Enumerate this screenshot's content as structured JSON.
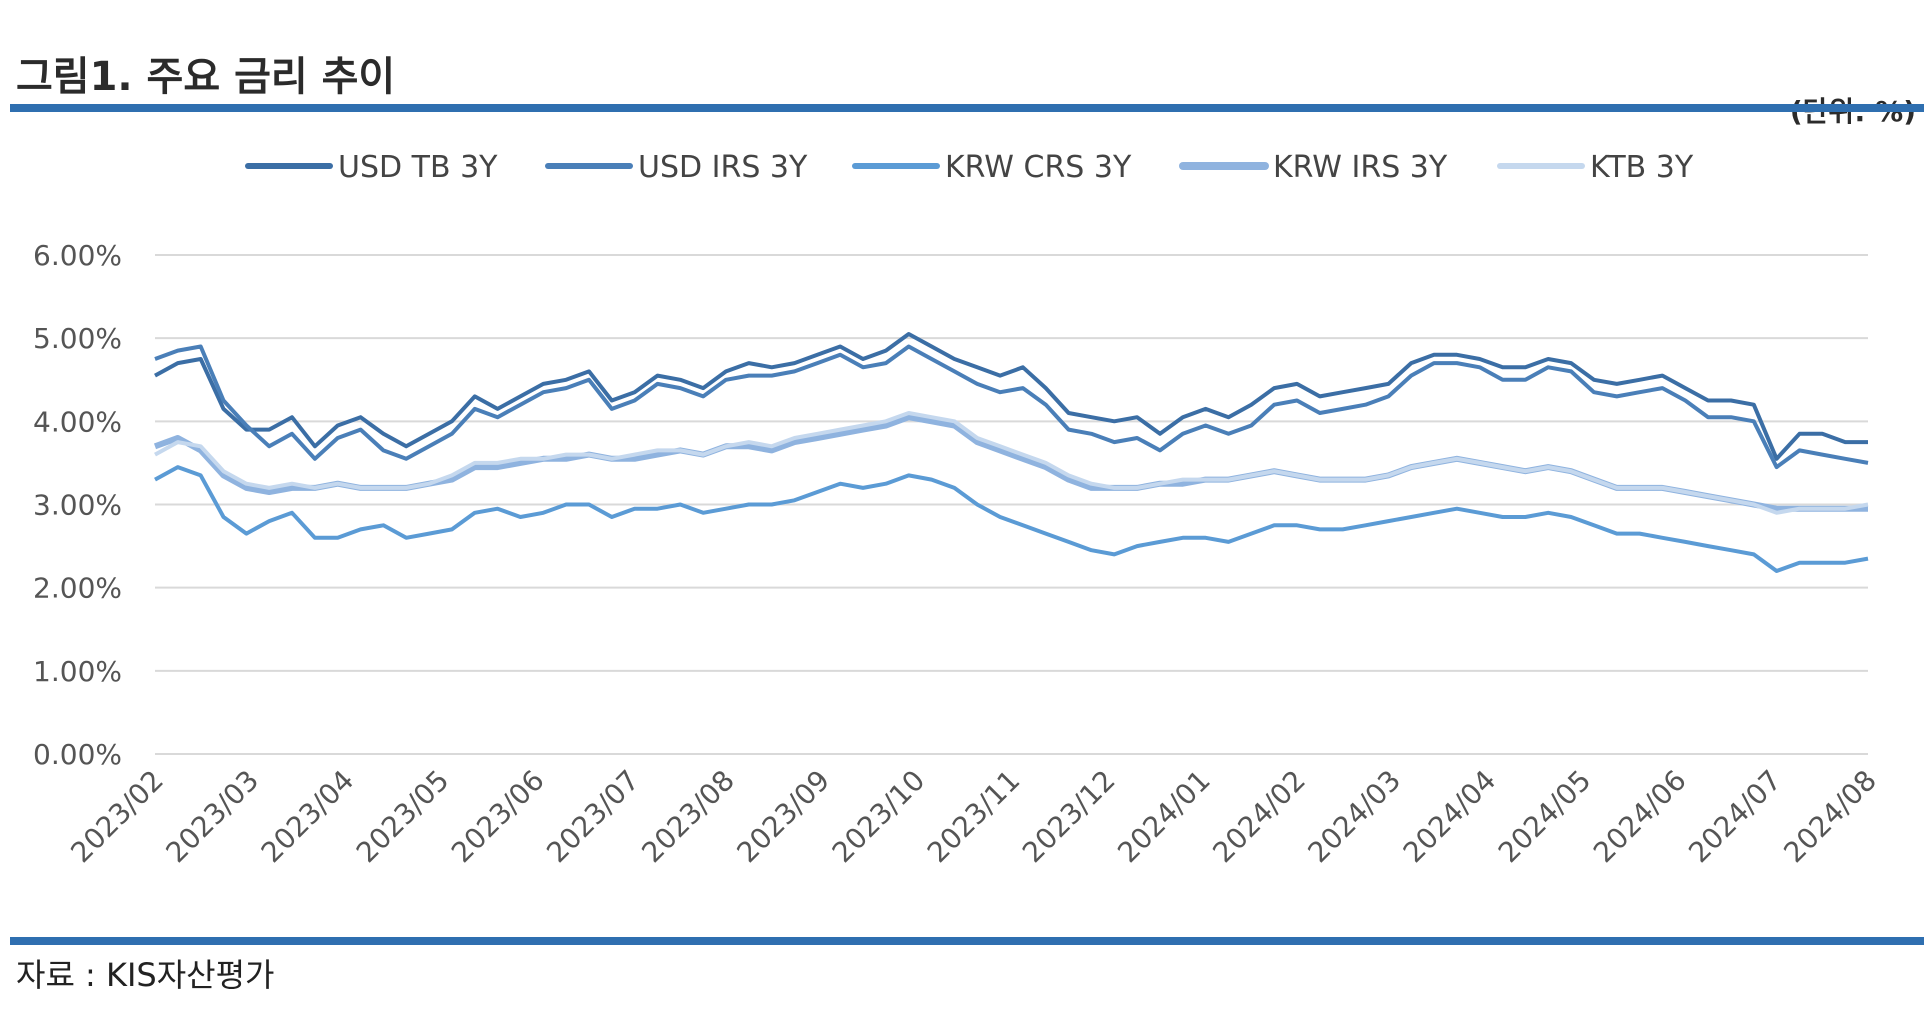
{
  "header": {
    "title": "그림1. 주요 금리 추이",
    "unit": "(단위: %)"
  },
  "footer": {
    "source": "자료 : KIS자산평가"
  },
  "chart_data": {
    "type": "line",
    "y_ticks": [
      "0.00%",
      "1.00%",
      "2.00%",
      "3.00%",
      "4.00%",
      "5.00%",
      "6.00%"
    ],
    "ylim": [
      0,
      6
    ],
    "grid": true,
    "legend_position": "top",
    "x_labels": [
      "2023/02",
      "2023/03",
      "2023/04",
      "2023/05",
      "2023/06",
      "2023/07",
      "2023/08",
      "2023/09",
      "2023/10",
      "2023/11",
      "2023/12",
      "2024/01",
      "2024/02",
      "2024/03",
      "2024/04",
      "2024/05",
      "2024/06",
      "2024/07",
      "2024/08"
    ],
    "series": [
      {
        "name": "USD TB 3Y",
        "color": "#3b6ea5",
        "width": 4,
        "values": [
          4.55,
          4.7,
          4.75,
          4.15,
          3.9,
          3.9,
          4.05,
          3.7,
          3.95,
          4.05,
          3.85,
          3.7,
          3.85,
          4.0,
          4.3,
          4.15,
          4.3,
          4.45,
          4.5,
          4.6,
          4.25,
          4.35,
          4.55,
          4.5,
          4.4,
          4.6,
          4.7,
          4.65,
          4.7,
          4.8,
          4.9,
          4.75,
          4.85,
          5.05,
          4.9,
          4.75,
          4.65,
          4.55,
          4.65,
          4.4,
          4.1,
          4.05,
          4.0,
          4.05,
          3.85,
          4.05,
          4.15,
          4.05,
          4.2,
          4.4,
          4.45,
          4.3,
          4.35,
          4.4,
          4.45,
          4.7,
          4.8,
          4.8,
          4.75,
          4.65,
          4.65,
          4.75,
          4.7,
          4.5,
          4.45,
          4.5,
          4.55,
          4.4,
          4.25,
          4.25,
          4.2,
          3.55,
          3.85,
          3.85,
          3.75,
          3.75
        ]
      },
      {
        "name": "USD IRS 3Y",
        "color": "#4a7fb8",
        "width": 4,
        "values": [
          4.75,
          4.85,
          4.9,
          4.25,
          3.95,
          3.7,
          3.85,
          3.55,
          3.8,
          3.9,
          3.65,
          3.55,
          3.7,
          3.85,
          4.15,
          4.05,
          4.2,
          4.35,
          4.4,
          4.5,
          4.15,
          4.25,
          4.45,
          4.4,
          4.3,
          4.5,
          4.55,
          4.55,
          4.6,
          4.7,
          4.8,
          4.65,
          4.7,
          4.9,
          4.75,
          4.6,
          4.45,
          4.35,
          4.4,
          4.2,
          3.9,
          3.85,
          3.75,
          3.8,
          3.65,
          3.85,
          3.95,
          3.85,
          3.95,
          4.2,
          4.25,
          4.1,
          4.15,
          4.2,
          4.3,
          4.55,
          4.7,
          4.7,
          4.65,
          4.5,
          4.5,
          4.65,
          4.6,
          4.35,
          4.3,
          4.35,
          4.4,
          4.25,
          4.05,
          4.05,
          4.0,
          3.45,
          3.65,
          3.6,
          3.55,
          3.5
        ]
      },
      {
        "name": "KRW CRS 3Y",
        "color": "#5b9bd5",
        "width": 4,
        "values": [
          3.3,
          3.45,
          3.35,
          2.85,
          2.65,
          2.8,
          2.9,
          2.6,
          2.6,
          2.7,
          2.75,
          2.6,
          2.65,
          2.7,
          2.9,
          2.95,
          2.85,
          2.9,
          3.0,
          3.0,
          2.85,
          2.95,
          2.95,
          3.0,
          2.9,
          2.95,
          3.0,
          3.0,
          3.05,
          3.15,
          3.25,
          3.2,
          3.25,
          3.35,
          3.3,
          3.2,
          3.0,
          2.85,
          2.75,
          2.65,
          2.55,
          2.45,
          2.4,
          2.5,
          2.55,
          2.6,
          2.6,
          2.55,
          2.65,
          2.75,
          2.75,
          2.7,
          2.7,
          2.75,
          2.8,
          2.85,
          2.9,
          2.95,
          2.9,
          2.85,
          2.85,
          2.9,
          2.85,
          2.75,
          2.65,
          2.65,
          2.6,
          2.55,
          2.5,
          2.45,
          2.4,
          2.2,
          2.3,
          2.3,
          2.3,
          2.35
        ]
      },
      {
        "name": "KRW IRS 3Y",
        "color": "#8fb3df",
        "width": 6,
        "values": [
          3.7,
          3.8,
          3.65,
          3.35,
          3.2,
          3.15,
          3.2,
          3.2,
          3.25,
          3.2,
          3.2,
          3.2,
          3.25,
          3.3,
          3.45,
          3.45,
          3.5,
          3.55,
          3.55,
          3.6,
          3.55,
          3.55,
          3.6,
          3.65,
          3.6,
          3.7,
          3.7,
          3.65,
          3.75,
          3.8,
          3.85,
          3.9,
          3.95,
          4.05,
          4.0,
          3.95,
          3.75,
          3.65,
          3.55,
          3.45,
          3.3,
          3.2,
          3.2,
          3.2,
          3.25,
          3.25,
          3.3,
          3.3,
          3.35,
          3.4,
          3.35,
          3.3,
          3.3,
          3.3,
          3.35,
          3.45,
          3.5,
          3.55,
          3.5,
          3.45,
          3.4,
          3.45,
          3.4,
          3.3,
          3.2,
          3.2,
          3.2,
          3.15,
          3.1,
          3.05,
          3.0,
          2.95,
          2.95,
          2.95,
          2.95,
          2.95
        ]
      },
      {
        "name": "KTB 3Y",
        "color": "#c5d8ee",
        "width": 4,
        "values": [
          3.6,
          3.75,
          3.7,
          3.4,
          3.25,
          3.2,
          3.25,
          3.2,
          3.25,
          3.2,
          3.2,
          3.2,
          3.25,
          3.35,
          3.5,
          3.5,
          3.55,
          3.55,
          3.6,
          3.6,
          3.55,
          3.6,
          3.65,
          3.65,
          3.6,
          3.7,
          3.75,
          3.7,
          3.8,
          3.85,
          3.9,
          3.95,
          4.0,
          4.1,
          4.05,
          4.0,
          3.8,
          3.7,
          3.6,
          3.5,
          3.35,
          3.25,
          3.2,
          3.2,
          3.25,
          3.3,
          3.3,
          3.3,
          3.35,
          3.4,
          3.35,
          3.3,
          3.3,
          3.3,
          3.35,
          3.45,
          3.5,
          3.55,
          3.5,
          3.45,
          3.4,
          3.45,
          3.4,
          3.3,
          3.2,
          3.2,
          3.2,
          3.15,
          3.1,
          3.05,
          3.0,
          2.9,
          2.95,
          2.95,
          2.95,
          3.0
        ]
      }
    ]
  }
}
